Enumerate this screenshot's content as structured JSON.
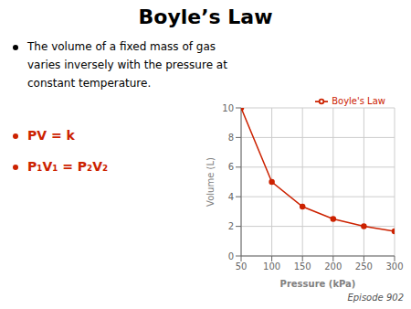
{
  "chart_data": {
    "type": "line",
    "title": "Boyle’s Law",
    "x": [
      50,
      100,
      150,
      200,
      250,
      300
    ],
    "series": [
      {
        "name": "Boyle's Law",
        "color": "#cc2200",
        "marker": "circle",
        "values": [
          10.0,
          5.0,
          3.33,
          2.5,
          2.0,
          1.67
        ]
      }
    ],
    "xlabel": "Pressure (kPa)",
    "ylabel": "Volume (L)",
    "xlim": [
      50,
      300
    ],
    "ylim": [
      0,
      10
    ],
    "xticks": [
      50,
      100,
      150,
      200,
      250,
      300
    ],
    "yticks": [
      0,
      2,
      4,
      6,
      8,
      10
    ],
    "grid": true,
    "legend": "upper right",
    "annotations": [
      {
        "text": "The volume of a fixed mass of gas",
        "color": "#000000"
      },
      {
        "text": "varies inversely with the pressure at",
        "color": "#000000"
      },
      {
        "text": "constant temperature.",
        "color": "#000000"
      },
      {
        "text": "PV = k",
        "color": "#cc2200"
      },
      {
        "text": "P₁V₁ = P₂V₂",
        "color": "#cc2200"
      },
      {
        "text": "Episode 902",
        "color": "#555555"
      }
    ]
  }
}
